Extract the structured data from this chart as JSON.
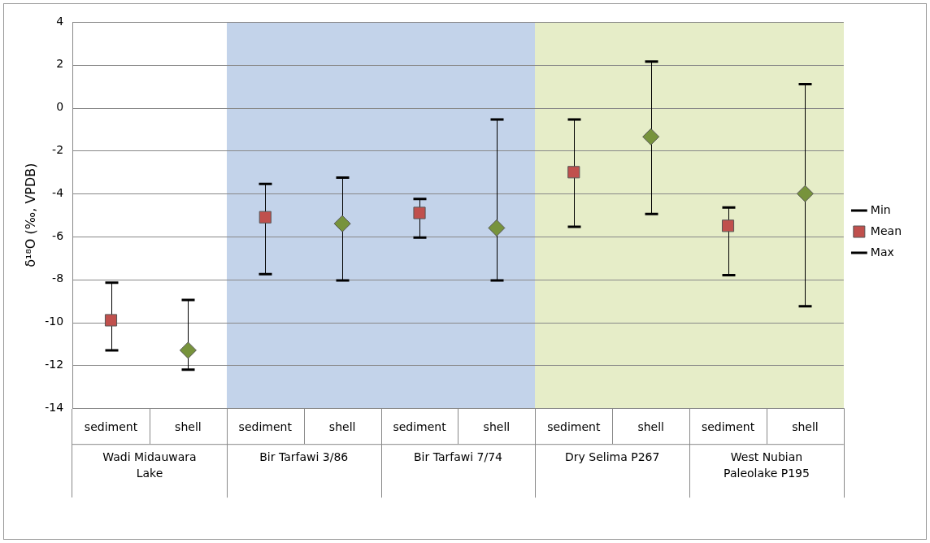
{
  "chart_data": {
    "type": "scatter",
    "ylabel": "δ¹⁸O (‰, VPDB)",
    "categories": [
      "sediment",
      "shell",
      "sediment",
      "shell",
      "sediment",
      "shell",
      "sediment",
      "shell",
      "sediment",
      "shell"
    ],
    "annotations": [
      "Wadi Midauwara Lake",
      "Bir Tarfawi 3/86",
      "Bir Tarfawi 7/74",
      "Dry Selima P267",
      "West Nubian Paleolake P195"
    ],
    "ylim": [
      -14,
      4
    ],
    "yticks": [
      -14,
      -12,
      -10,
      -8,
      -6,
      -4,
      -2,
      0,
      2,
      4
    ],
    "grid": "y",
    "legend": "right",
    "series": [
      {
        "name": "Min",
        "color": "#000000",
        "marker": "none",
        "values": [
          null,
          null,
          null,
          null,
          null,
          null,
          null,
          null,
          null,
          null
        ]
      },
      {
        "name": "Mean",
        "color": "#c0504d",
        "marker": "square",
        "values": [
          -9.9,
          null,
          -5.1,
          null,
          -4.9,
          null,
          -3.0,
          null,
          -5.5,
          null
        ],
        "errors": [
          [
            -11.3,
            -8.15
          ],
          null,
          [
            -7.75,
            -3.55
          ],
          null,
          [
            -6.05,
            -4.25
          ],
          null,
          [
            -5.55,
            -0.55
          ],
          null,
          [
            -7.8,
            -4.65
          ],
          null
        ]
      },
      {
        "name": "Max",
        "color": "#000000",
        "marker": "none",
        "values": [
          null,
          null,
          null,
          null,
          null,
          null,
          null,
          null,
          null,
          null
        ]
      },
      {
        "color": "#77933c",
        "marker": "diamond",
        "values": [
          null,
          -11.3,
          null,
          -5.4,
          null,
          -5.6,
          null,
          -1.35,
          null,
          -4.0
        ],
        "errors": [
          null,
          [
            -12.2,
            -8.95
          ],
          null,
          [
            -8.05,
            -3.25
          ],
          null,
          [
            -8.05,
            -0.55
          ],
          null,
          [
            -4.95,
            2.15
          ],
          null,
          [
            -9.25,
            1.1
          ]
        ]
      }
    ]
  }
}
